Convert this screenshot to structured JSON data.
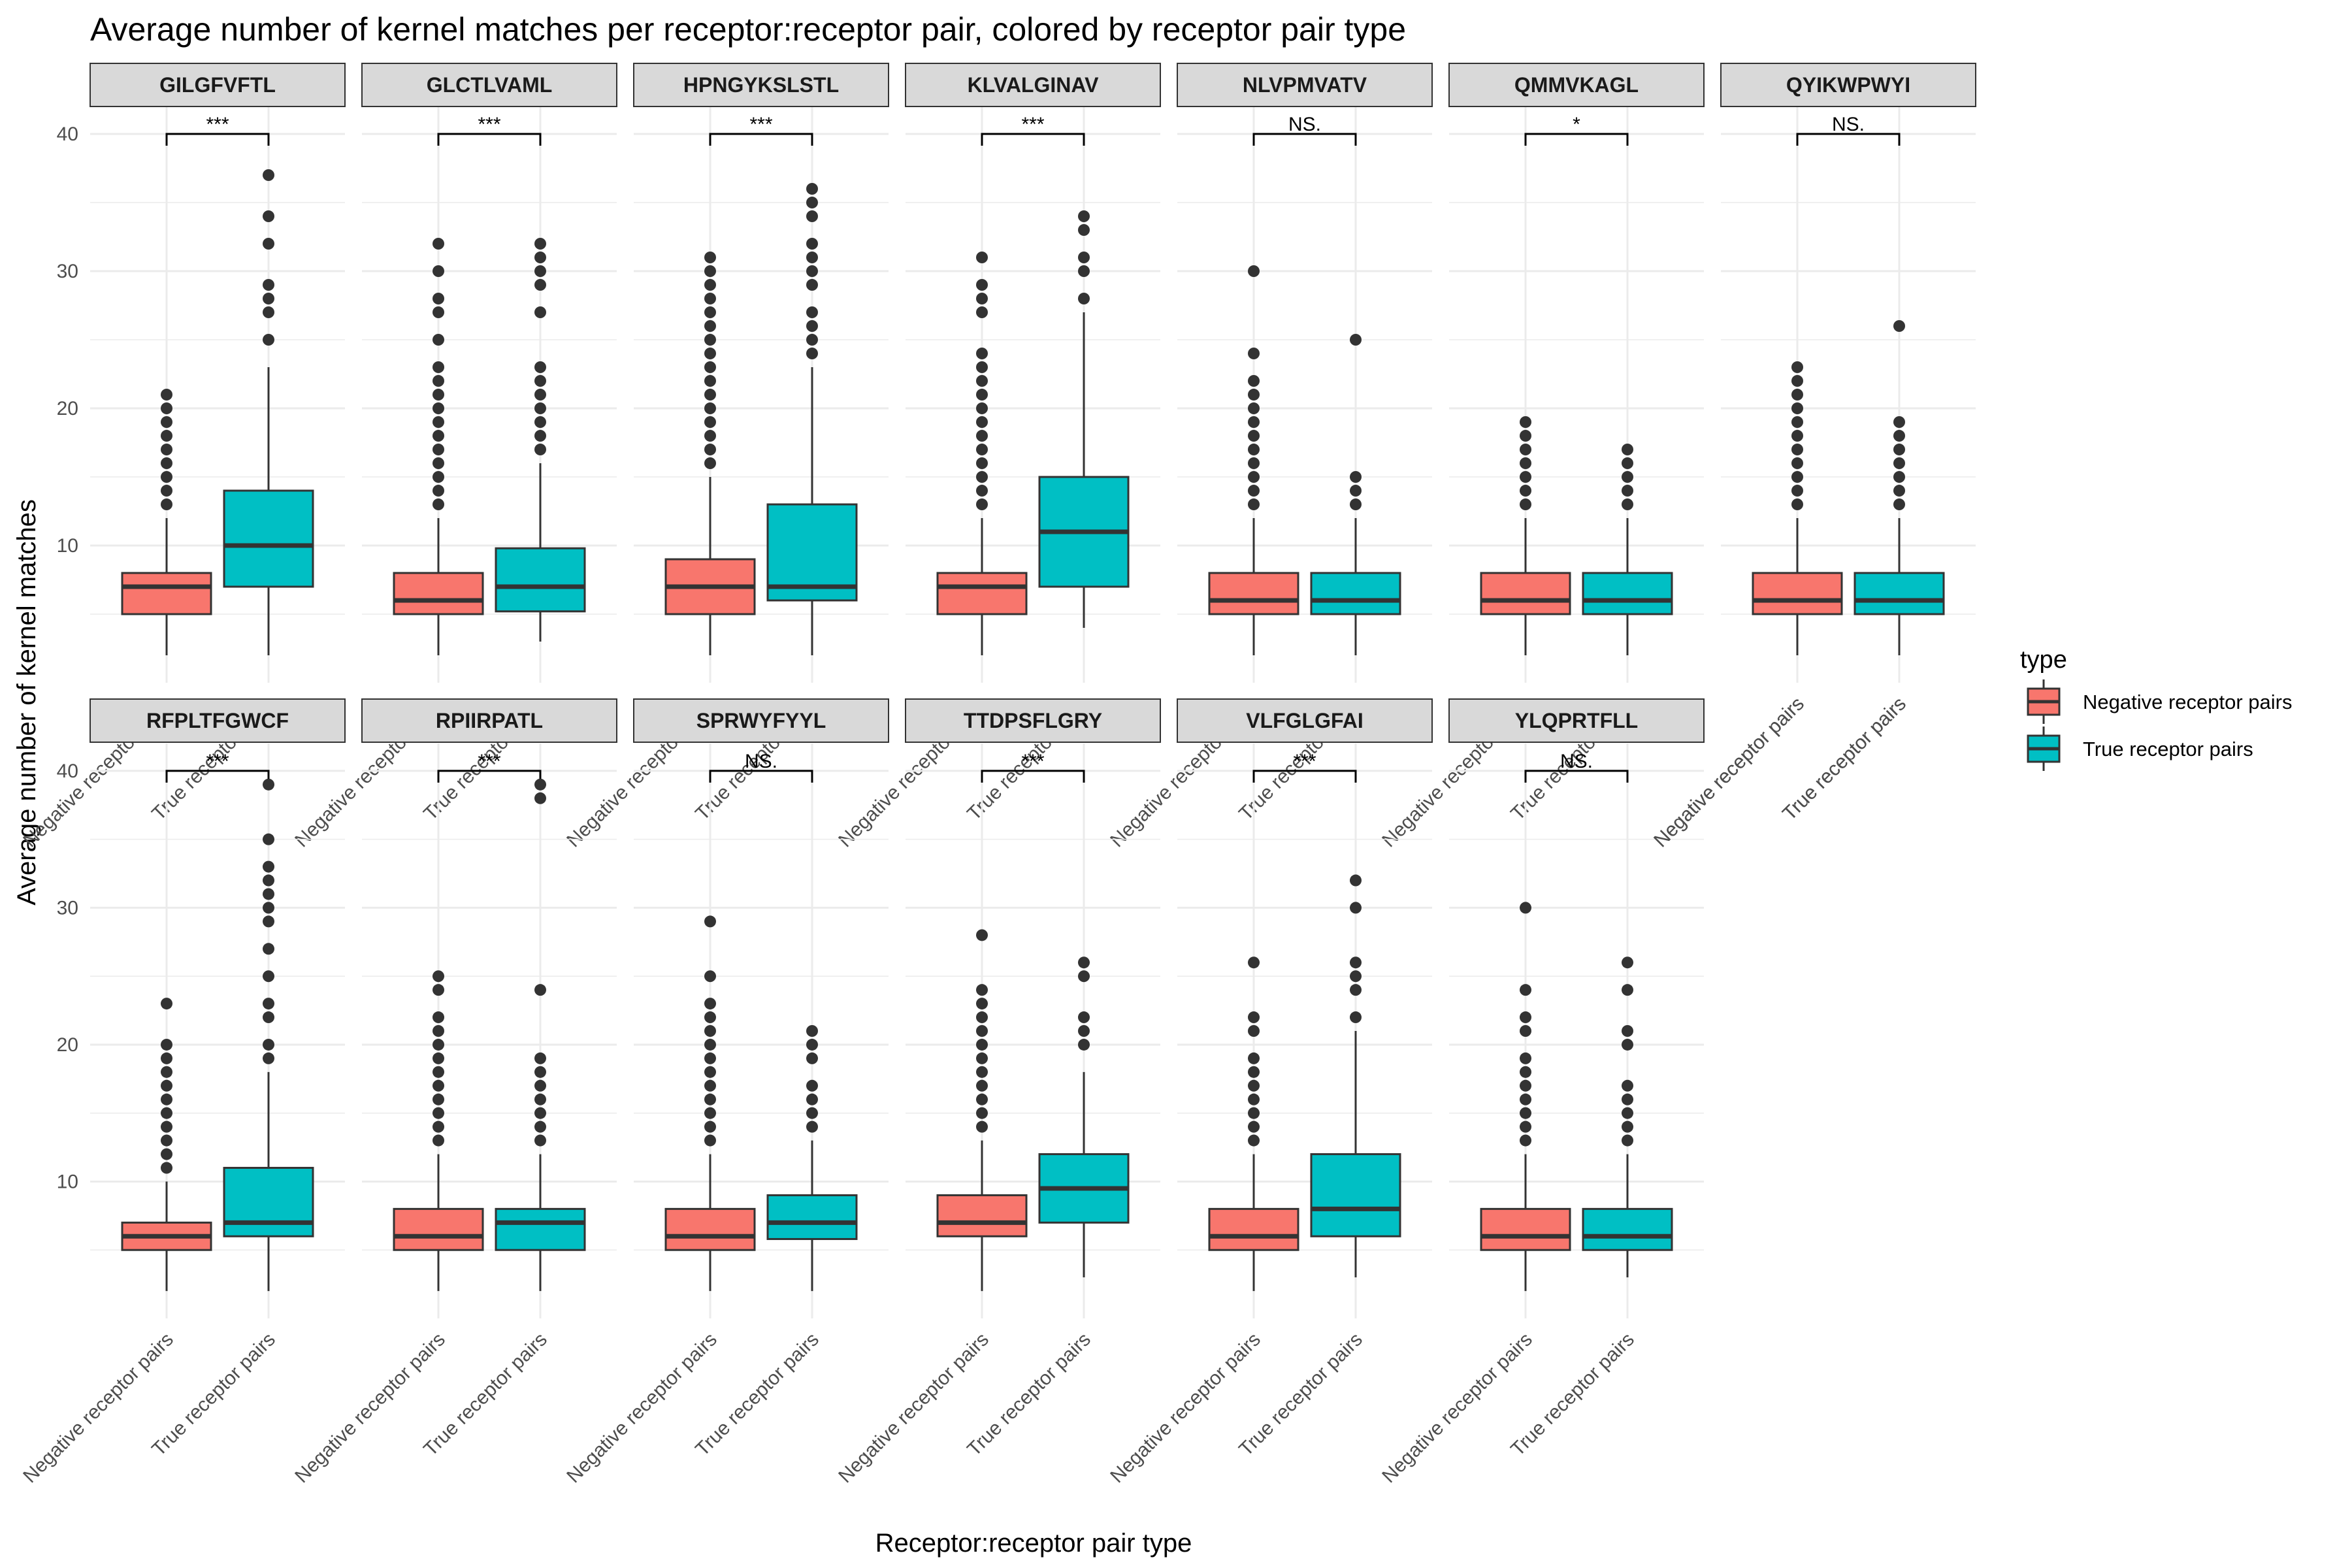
{
  "chart_data": {
    "type": "box",
    "title": "Average number of kernel matches per receptor:receptor pair, colored by receptor pair type",
    "xlabel": "Receptor:receptor pair type",
    "ylabel": "Average number of kernel matches",
    "ylim": [
      0,
      42
    ],
    "yticks": [
      10,
      20,
      30,
      40
    ],
    "categories": [
      "Negative receptor pairs",
      "True receptor pairs"
    ],
    "legend": {
      "title": "type",
      "position": "right",
      "entries": [
        {
          "name": "Negative receptor pairs",
          "color": "#F8766D"
        },
        {
          "name": "True receptor pairs",
          "color": "#00BFC4"
        }
      ]
    },
    "grid": true,
    "panels": [
      {
        "epitope": "GILGFVFTL",
        "sig": "***",
        "boxes": [
          {
            "min": 2,
            "q1": 5,
            "median": 7,
            "q3": 8,
            "max": 12,
            "outliers": [
              13,
              14,
              15,
              16,
              17,
              18,
              19,
              20,
              21
            ]
          },
          {
            "min": 2,
            "q1": 7,
            "median": 10,
            "q3": 14,
            "max": 23,
            "outliers": [
              25,
              27,
              28,
              29,
              32,
              34,
              37
            ]
          }
        ]
      },
      {
        "epitope": "GLCTLVAML",
        "sig": "***",
        "boxes": [
          {
            "min": 2,
            "q1": 5,
            "median": 6,
            "q3": 8,
            "max": 12,
            "outliers": [
              13,
              14,
              15,
              16,
              17,
              18,
              19,
              20,
              21,
              22,
              23,
              25,
              27,
              28,
              30,
              32
            ]
          },
          {
            "min": 3,
            "q1": 5.2,
            "median": 7,
            "q3": 9.8,
            "max": 16,
            "outliers": [
              17,
              18,
              19,
              20,
              21,
              22,
              23,
              27,
              29,
              30,
              31,
              32
            ]
          }
        ]
      },
      {
        "epitope": "HPNGYKSLSTL",
        "sig": "***",
        "boxes": [
          {
            "min": 2,
            "q1": 5,
            "median": 7,
            "q3": 9,
            "max": 15,
            "outliers": [
              16,
              17,
              18,
              19,
              20,
              21,
              22,
              23,
              24,
              25,
              26,
              27,
              28,
              29,
              30,
              31
            ]
          },
          {
            "min": 2,
            "q1": 6,
            "median": 7,
            "q3": 13,
            "max": 23,
            "outliers": [
              24,
              25,
              26,
              27,
              29,
              30,
              31,
              32,
              34,
              35,
              36
            ]
          }
        ]
      },
      {
        "epitope": "KLVALGINAV",
        "sig": "***",
        "boxes": [
          {
            "min": 2,
            "q1": 5,
            "median": 7,
            "q3": 8,
            "max": 12,
            "outliers": [
              13,
              14,
              15,
              16,
              17,
              18,
              19,
              20,
              21,
              22,
              23,
              24,
              27,
              28,
              29,
              31
            ]
          },
          {
            "min": 4,
            "q1": 7,
            "median": 11,
            "q3": 15,
            "max": 27,
            "outliers": [
              28,
              30,
              31,
              33,
              34
            ]
          }
        ]
      },
      {
        "epitope": "NLVPMVATV",
        "sig": "NS.",
        "boxes": [
          {
            "min": 2,
            "q1": 5,
            "median": 6,
            "q3": 8,
            "max": 12,
            "outliers": [
              13,
              14,
              15,
              16,
              17,
              18,
              19,
              20,
              21,
              22,
              24,
              30
            ]
          },
          {
            "min": 2,
            "q1": 5,
            "median": 6,
            "q3": 8,
            "max": 12,
            "outliers": [
              13,
              14,
              15,
              25
            ]
          }
        ]
      },
      {
        "epitope": "QMMVKAGL",
        "sig": "*",
        "boxes": [
          {
            "min": 2,
            "q1": 5,
            "median": 6,
            "q3": 8,
            "max": 12,
            "outliers": [
              13,
              14,
              15,
              16,
              17,
              18,
              19
            ]
          },
          {
            "min": 2,
            "q1": 5,
            "median": 6,
            "q3": 8,
            "max": 12,
            "outliers": [
              13,
              14,
              15,
              16,
              17
            ]
          }
        ]
      },
      {
        "epitope": "QYIKWPWYI",
        "sig": "NS.",
        "boxes": [
          {
            "min": 2,
            "q1": 5,
            "median": 6,
            "q3": 8,
            "max": 12,
            "outliers": [
              13,
              14,
              15,
              16,
              17,
              18,
              19,
              20,
              21,
              22,
              23
            ]
          },
          {
            "min": 2,
            "q1": 5,
            "median": 6,
            "q3": 8,
            "max": 12,
            "outliers": [
              13,
              14,
              15,
              16,
              17,
              18,
              19,
              26
            ]
          }
        ]
      },
      {
        "epitope": "RFPLTFGWCF",
        "sig": "***",
        "boxes": [
          {
            "min": 2,
            "q1": 5,
            "median": 6,
            "q3": 7,
            "max": 10,
            "outliers": [
              11,
              12,
              13,
              14,
              15,
              16,
              17,
              18,
              19,
              20,
              23
            ]
          },
          {
            "min": 2,
            "q1": 6,
            "median": 7,
            "q3": 11,
            "max": 18,
            "outliers": [
              19,
              20,
              22,
              23,
              25,
              27,
              29,
              30,
              31,
              32,
              33,
              35,
              39
            ]
          }
        ]
      },
      {
        "epitope": "RPIIRPATL",
        "sig": "***",
        "boxes": [
          {
            "min": 2,
            "q1": 5,
            "median": 6,
            "q3": 8,
            "max": 12,
            "outliers": [
              13,
              14,
              15,
              16,
              17,
              18,
              19,
              20,
              21,
              22,
              24,
              25
            ]
          },
          {
            "min": 2,
            "q1": 5,
            "median": 7,
            "q3": 8,
            "max": 12,
            "outliers": [
              13,
              14,
              15,
              16,
              17,
              18,
              19,
              24,
              38,
              39
            ]
          }
        ]
      },
      {
        "epitope": "SPRWYFYYL",
        "sig": "NS.",
        "boxes": [
          {
            "min": 2,
            "q1": 5,
            "median": 6,
            "q3": 8,
            "max": 12,
            "outliers": [
              13,
              14,
              15,
              16,
              17,
              18,
              19,
              20,
              21,
              22,
              23,
              25,
              29
            ]
          },
          {
            "min": 2,
            "q1": 5.8,
            "median": 7,
            "q3": 9,
            "max": 13,
            "outliers": [
              14,
              15,
              16,
              17,
              19,
              20,
              21
            ]
          }
        ]
      },
      {
        "epitope": "TTDPSFLGRY",
        "sig": "***",
        "boxes": [
          {
            "min": 2,
            "q1": 6,
            "median": 7,
            "q3": 9,
            "max": 13,
            "outliers": [
              14,
              15,
              16,
              17,
              18,
              19,
              20,
              21,
              22,
              23,
              24,
              28
            ]
          },
          {
            "min": 3,
            "q1": 7,
            "median": 9.5,
            "q3": 12,
            "max": 18,
            "outliers": [
              20,
              21,
              22,
              25,
              26
            ]
          }
        ]
      },
      {
        "epitope": "VLFGLGFAI",
        "sig": "***",
        "boxes": [
          {
            "min": 2,
            "q1": 5,
            "median": 6,
            "q3": 8,
            "max": 12,
            "outliers": [
              13,
              14,
              15,
              16,
              17,
              18,
              19,
              21,
              22,
              26
            ]
          },
          {
            "min": 3,
            "q1": 6,
            "median": 8,
            "q3": 12,
            "max": 21,
            "outliers": [
              22,
              24,
              25,
              26,
              30,
              32
            ]
          }
        ]
      },
      {
        "epitope": "YLQPRTFLL",
        "sig": "NS.",
        "boxes": [
          {
            "min": 2,
            "q1": 5,
            "median": 6,
            "q3": 8,
            "max": 12,
            "outliers": [
              13,
              14,
              15,
              16,
              17,
              18,
              19,
              21,
              22,
              24,
              30
            ]
          },
          {
            "min": 3,
            "q1": 5,
            "median": 6,
            "q3": 8,
            "max": 12,
            "outliers": [
              13,
              14,
              15,
              16,
              17,
              20,
              21,
              24,
              26
            ]
          }
        ]
      }
    ]
  }
}
